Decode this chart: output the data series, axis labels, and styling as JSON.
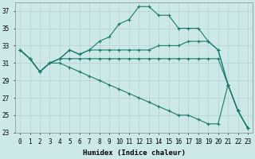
{
  "xlabel": "Humidex (Indice chaleur)",
  "background_color": "#cce8e8",
  "grid_color": "#b8d4d4",
  "line_color": "#1a7a6e",
  "x": [
    0,
    1,
    2,
    3,
    4,
    5,
    6,
    7,
    8,
    9,
    10,
    11,
    12,
    13,
    14,
    15,
    16,
    17,
    18,
    19,
    20,
    21,
    22,
    23
  ],
  "series": [
    [
      32.5,
      31.5,
      30.0,
      31.0,
      31.5,
      32.5,
      32.0,
      32.5,
      33.5,
      34.0,
      35.5,
      36.0,
      37.5,
      37.5,
      36.5,
      36.5,
      35.0,
      35.0,
      35.0,
      33.5,
      32.5,
      28.5,
      25.5,
      23.5
    ],
    [
      32.5,
      31.5,
      30.0,
      31.0,
      31.5,
      32.5,
      32.0,
      32.5,
      32.5,
      32.5,
      32.5,
      32.5,
      32.5,
      32.5,
      33.0,
      33.0,
      33.0,
      33.5,
      33.5,
      33.5,
      32.5,
      28.5,
      25.5,
      23.5
    ],
    [
      32.5,
      31.5,
      30.0,
      31.0,
      31.5,
      31.5,
      31.5,
      31.5,
      31.5,
      31.5,
      31.5,
      31.5,
      31.5,
      31.5,
      31.5,
      31.5,
      31.5,
      31.5,
      31.5,
      31.5,
      31.5,
      28.5,
      25.5,
      23.5
    ],
    [
      32.5,
      31.5,
      30.0,
      31.0,
      31.0,
      30.5,
      30.0,
      29.5,
      29.0,
      28.5,
      28.0,
      27.5,
      27.0,
      26.5,
      26.0,
      25.5,
      25.0,
      25.0,
      24.5,
      24.0,
      24.0,
      28.5,
      25.5,
      23.5
    ]
  ],
  "ylim": [
    23,
    38
  ],
  "yticks": [
    23,
    25,
    27,
    29,
    31,
    33,
    35,
    37
  ],
  "xlim": [
    -0.5,
    23.5
  ],
  "figsize": [
    3.2,
    2.0
  ],
  "dpi": 100
}
